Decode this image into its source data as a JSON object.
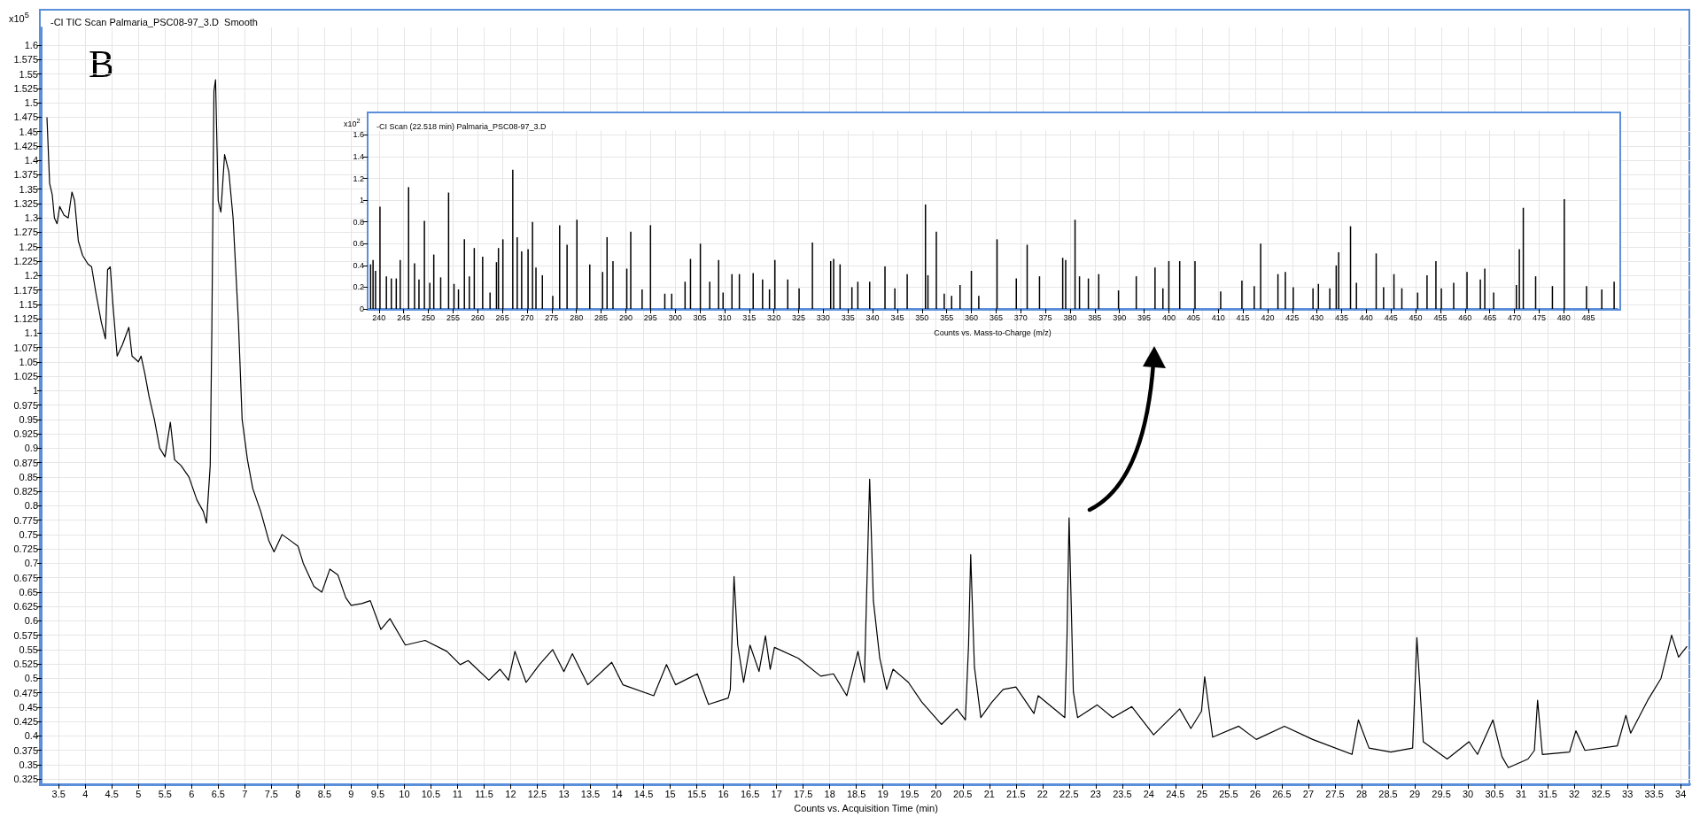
{
  "chart_data": [
    {
      "type": "line",
      "title": "-CI TIC Scan Palmaria_PSC08-97_3.D  Smooth",
      "xlabel": "Counts vs. Acquisition Time (min)",
      "ylabel": "x10$^{5}$",
      "annotations": [
        "B"
      ],
      "color": "#000000",
      "marker": "none",
      "grid": true,
      "x": [
        3.28,
        3.33,
        3.38,
        3.42,
        3.47,
        3.52,
        3.6,
        3.68,
        3.75,
        3.8,
        3.87,
        3.95,
        4.05,
        4.12,
        4.2,
        4.3,
        4.38,
        4.42,
        4.47,
        4.52,
        4.6,
        4.7,
        4.78,
        4.82,
        4.88,
        5.0,
        5.05,
        5.12,
        5.2,
        5.3,
        5.4,
        5.5,
        5.6,
        5.68,
        5.8,
        5.95,
        6.1,
        6.22,
        6.28,
        6.35,
        6.38,
        6.42,
        6.45,
        6.5,
        6.55,
        6.62,
        6.7,
        6.78,
        6.88,
        6.95,
        7.05,
        7.15,
        7.3,
        7.45,
        7.55,
        7.7,
        7.85,
        8.0,
        8.1,
        8.3,
        8.45,
        8.6,
        8.75,
        8.9,
        9.0,
        9.2,
        9.36,
        9.56,
        9.73,
        10.02,
        10.39,
        10.8,
        11.05,
        11.2,
        11.59,
        11.8,
        11.96,
        12.08,
        12.29,
        12.54,
        12.79,
        13.0,
        13.16,
        13.45,
        13.9,
        14.11,
        14.69,
        14.93,
        15.1,
        15.51,
        15.72,
        16.09,
        16.13,
        16.2,
        16.27,
        16.38,
        16.5,
        16.67,
        16.79,
        16.88,
        16.96,
        17.41,
        17.83,
        18.07,
        18.32,
        18.53,
        18.65,
        18.69,
        18.75,
        18.82,
        18.94,
        19.07,
        19.19,
        19.48,
        19.73,
        20.1,
        20.39,
        20.55,
        20.61,
        20.65,
        20.72,
        20.84,
        21.05,
        21.26,
        21.5,
        21.84,
        21.92,
        22.42,
        22.46,
        22.5,
        22.58,
        22.66,
        23.03,
        23.32,
        23.68,
        24.09,
        24.58,
        24.79,
        24.99,
        25.05,
        25.2,
        25.69,
        26.02,
        26.55,
        27.08,
        27.82,
        27.94,
        28.14,
        28.55,
        28.96,
        29.04,
        29.16,
        29.61,
        30.02,
        30.18,
        30.47,
        30.64,
        30.76,
        31.13,
        31.25,
        31.31,
        31.4,
        31.91,
        32.03,
        32.2,
        32.81,
        32.97,
        33.06,
        33.38,
        33.63,
        33.83,
        33.96,
        34.12
      ],
      "values": [
        1.475,
        1.36,
        1.34,
        1.3,
        1.29,
        1.32,
        1.305,
        1.3,
        1.345,
        1.33,
        1.26,
        1.235,
        1.22,
        1.215,
        1.17,
        1.12,
        1.09,
        1.21,
        1.215,
        1.15,
        1.06,
        1.08,
        1.1,
        1.11,
        1.06,
        1.05,
        1.06,
        1.03,
        0.99,
        0.95,
        0.9,
        0.885,
        0.945,
        0.88,
        0.87,
        0.85,
        0.81,
        0.79,
        0.77,
        0.87,
        1.1,
        1.52,
        1.54,
        1.33,
        1.31,
        1.41,
        1.38,
        1.3,
        1.12,
        0.95,
        0.88,
        0.83,
        0.79,
        0.74,
        0.72,
        0.75,
        0.74,
        0.73,
        0.7,
        0.66,
        0.65,
        0.69,
        0.68,
        0.64,
        0.627,
        0.63,
        0.635,
        0.585,
        0.604,
        0.558,
        0.566,
        0.547,
        0.524,
        0.531,
        0.497,
        0.516,
        0.497,
        0.547,
        0.493,
        0.524,
        0.55,
        0.512,
        0.543,
        0.489,
        0.528,
        0.489,
        0.47,
        0.524,
        0.489,
        0.508,
        0.455,
        0.466,
        0.481,
        0.677,
        0.558,
        0.493,
        0.558,
        0.512,
        0.574,
        0.516,
        0.554,
        0.535,
        0.504,
        0.508,
        0.47,
        0.547,
        0.493,
        0.635,
        0.846,
        0.635,
        0.535,
        0.481,
        0.516,
        0.493,
        0.459,
        0.42,
        0.447,
        0.428,
        0.558,
        0.715,
        0.52,
        0.432,
        0.459,
        0.481,
        0.485,
        0.439,
        0.47,
        0.432,
        0.567,
        0.779,
        0.477,
        0.432,
        0.454,
        0.432,
        0.451,
        0.402,
        0.447,
        0.413,
        0.443,
        0.503,
        0.398,
        0.417,
        0.394,
        0.417,
        0.394,
        0.368,
        0.428,
        0.379,
        0.372,
        0.379,
        0.571,
        0.39,
        0.36,
        0.39,
        0.368,
        0.428,
        0.364,
        0.345,
        0.36,
        0.375,
        0.462,
        0.368,
        0.372,
        0.409,
        0.375,
        0.383,
        0.436,
        0.405,
        0.462,
        0.5,
        0.575,
        0.537,
        0.556
      ],
      "xlim": [
        3.18,
        34.18
      ],
      "ylim": [
        0.316,
        1.631
      ],
      "xticks": [
        3.5,
        4,
        4.5,
        5,
        5.5,
        6,
        6.5,
        7,
        7.5,
        8,
        8.5,
        9,
        9.5,
        10,
        10.5,
        11,
        11.5,
        12,
        12.5,
        13,
        13.5,
        14,
        14.5,
        15,
        15.5,
        16,
        16.5,
        17,
        17.5,
        18,
        18.5,
        19,
        19.5,
        20,
        20.5,
        21,
        21.5,
        22,
        22.5,
        23,
        23.5,
        24,
        24.5,
        25,
        25.5,
        26,
        26.5,
        27,
        27.5,
        28,
        28.5,
        29,
        29.5,
        30,
        30.5,
        31,
        31.5,
        32,
        32.5,
        33,
        33.5,
        34
      ],
      "yticks": [
        0.325,
        0.35,
        0.375,
        0.4,
        0.425,
        0.45,
        0.475,
        0.5,
        0.525,
        0.55,
        0.575,
        0.6,
        0.625,
        0.65,
        0.675,
        0.7,
        0.725,
        0.75,
        0.775,
        0.8,
        0.825,
        0.85,
        0.875,
        0.9,
        0.925,
        0.95,
        0.975,
        1,
        1.025,
        1.05,
        1.075,
        1.1,
        1.125,
        1.15,
        1.175,
        1.2,
        1.225,
        1.25,
        1.275,
        1.3,
        1.325,
        1.35,
        1.375,
        1.4,
        1.425,
        1.45,
        1.475,
        1.5,
        1.525,
        1.55,
        1.575,
        1.6
      ]
    },
    {
      "type": "bar",
      "title": "-CI Scan (22.518 min) Palmaria_PSC08-97_3.D",
      "xlabel": "Counts vs. Mass-to-Charge (m/z)",
      "ylabel": "x10$^{2}$",
      "color": "#000000",
      "grid": true,
      "x": [
        238.3,
        238.8,
        239.3,
        240.2,
        241.5,
        242.5,
        243.5,
        244.3,
        246.0,
        247.2,
        248.1,
        249.2,
        250.3,
        251.1,
        252.5,
        254.1,
        255.2,
        256.1,
        257.3,
        258.3,
        259.3,
        261.0,
        262.5,
        263.8,
        264.2,
        265.1,
        267.1,
        268.0,
        268.9,
        270.2,
        271.1,
        271.8,
        273.1,
        275.2,
        276.6,
        278.1,
        280.1,
        282.7,
        285.3,
        286.2,
        287.4,
        290.2,
        291.0,
        293.3,
        295.0,
        297.9,
        299.3,
        302.0,
        303.1,
        305.1,
        307.0,
        308.8,
        309.7,
        311.5,
        313.0,
        315.8,
        317.7,
        319.1,
        320.2,
        322.8,
        325.1,
        327.8,
        331.5,
        332.1,
        333.4,
        335.8,
        337.0,
        339.4,
        342.5,
        344.5,
        347.0,
        350.7,
        351.2,
        352.9,
        354.5,
        356.0,
        357.7,
        360.0,
        361.5,
        365.2,
        369.1,
        371.3,
        373.8,
        378.5,
        379.1,
        381.0,
        381.9,
        383.7,
        385.8,
        389.8,
        393.4,
        397.2,
        398.8,
        400.0,
        402.2,
        405.3,
        410.5,
        414.8,
        417.3,
        418.6,
        422.1,
        423.6,
        425.2,
        429.2,
        430.3,
        432.6,
        433.9,
        434.4,
        436.8,
        438.0,
        442.0,
        443.5,
        445.6,
        447.2,
        450.4,
        452.3,
        454.1,
        455.2,
        457.7,
        460.4,
        463.1,
        464.0,
        465.8,
        470.4,
        471.0,
        471.8,
        474.3,
        477.7,
        480.1,
        484.6,
        487.7,
        490.2
      ],
      "values": [
        0.41,
        0.45,
        0.35,
        0.94,
        0.3,
        0.28,
        0.28,
        0.45,
        1.12,
        0.42,
        0.27,
        0.81,
        0.24,
        0.5,
        0.29,
        1.07,
        0.23,
        0.18,
        0.64,
        0.3,
        0.56,
        0.48,
        0.15,
        0.43,
        0.56,
        0.64,
        1.28,
        0.66,
        0.53,
        0.55,
        0.8,
        0.38,
        0.31,
        0.12,
        0.77,
        0.59,
        0.82,
        0.41,
        0.34,
        0.66,
        0.44,
        0.37,
        0.71,
        0.18,
        0.77,
        0.14,
        0.14,
        0.25,
        0.46,
        0.6,
        0.25,
        0.45,
        0.15,
        0.32,
        0.32,
        0.33,
        0.27,
        0.18,
        0.45,
        0.27,
        0.19,
        0.61,
        0.44,
        0.46,
        0.41,
        0.2,
        0.25,
        0.25,
        0.39,
        0.19,
        0.32,
        0.96,
        0.31,
        0.71,
        0.14,
        0.12,
        0.22,
        0.35,
        0.12,
        0.64,
        0.28,
        0.59,
        0.3,
        0.47,
        0.45,
        0.82,
        0.3,
        0.28,
        0.32,
        0.17,
        0.3,
        0.38,
        0.19,
        0.44,
        0.44,
        0.44,
        0.16,
        0.26,
        0.21,
        0.6,
        0.32,
        0.34,
        0.2,
        0.19,
        0.23,
        0.19,
        0.4,
        0.52,
        0.76,
        0.24,
        0.51,
        0.2,
        0.32,
        0.19,
        0.15,
        0.31,
        0.44,
        0.19,
        0.24,
        0.34,
        0.27,
        0.37,
        0.15,
        0.22,
        0.55,
        0.93,
        0.3,
        0.21,
        1.01,
        0.21,
        0.18,
        0.25
      ],
      "xlim": [
        237.7,
        490.9
      ],
      "ylim": [
        0,
        1.64
      ],
      "xticks": [
        240,
        245,
        250,
        255,
        260,
        265,
        270,
        275,
        280,
        285,
        290,
        295,
        300,
        305,
        310,
        315,
        320,
        325,
        330,
        335,
        340,
        345,
        350,
        355,
        360,
        365,
        370,
        375,
        380,
        385,
        390,
        395,
        400,
        405,
        410,
        415,
        420,
        425,
        430,
        435,
        440,
        445,
        450,
        455,
        460,
        465,
        470,
        475,
        480,
        485
      ],
      "yticks": [
        0,
        0.2,
        0.4,
        0.6,
        0.8,
        1,
        1.2,
        1.4,
        1.6
      ]
    }
  ]
}
